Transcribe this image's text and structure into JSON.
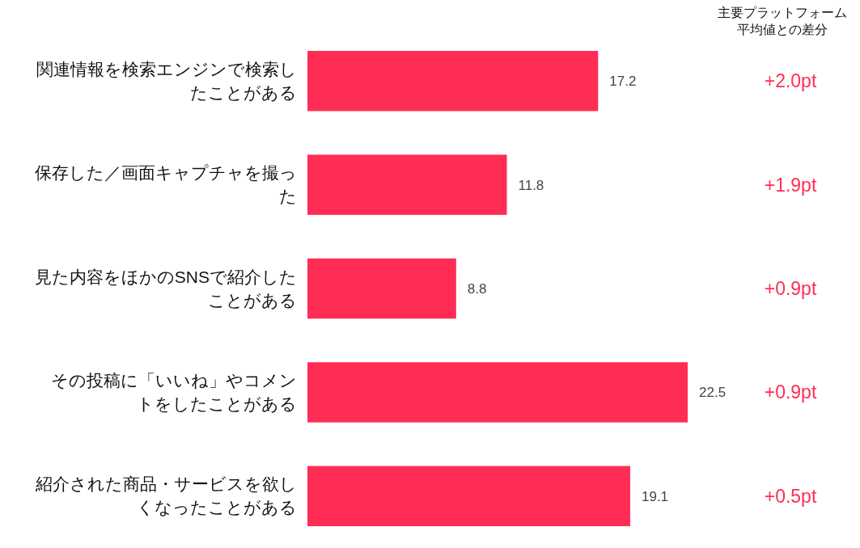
{
  "chart_data": {
    "type": "bar",
    "orientation": "horizontal",
    "categories": [
      "関連情報を検索エンジンで検索したことがある",
      "保存した／画面キャプチャを撮った",
      "見た内容をほかのSNSで紹介したことがある",
      "その投稿に「いいね」やコメントをしたことがある",
      "紹介された商品・サービスを欲しくなったことがある"
    ],
    "values": [
      17.2,
      11.8,
      8.8,
      22.5,
      19.1
    ],
    "color": "#ff2d55",
    "data_labels": true,
    "annotations": [
      "主要プラットフォーム平均値との差分",
      "+2.0pt",
      "+1.9pt",
      "+0.9pt",
      "+0.9pt",
      "+0.5pt"
    ]
  }
}
